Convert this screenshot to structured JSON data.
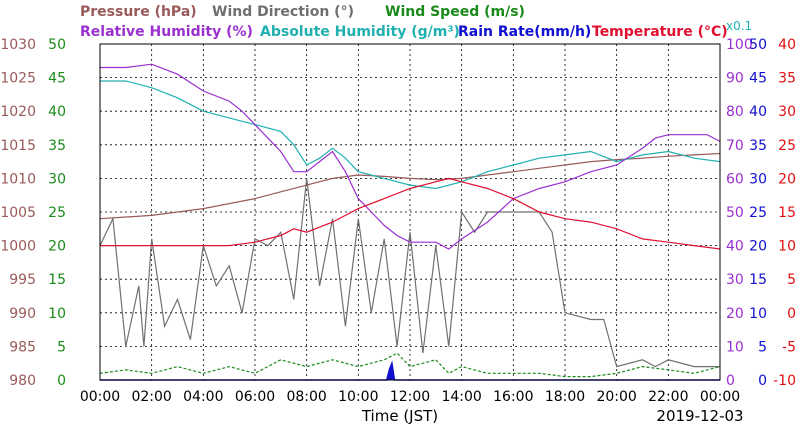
{
  "chart_data": {
    "type": "line",
    "xlabel": "Time (JST)",
    "date": "2019-12-03",
    "x_ticks": [
      "00:00",
      "02:00",
      "04:00",
      "06:00",
      "08:00",
      "10:00",
      "12:00",
      "14:00",
      "16:00",
      "18:00",
      "20:00",
      "22:00",
      "00:00"
    ],
    "grid": true,
    "legend_placement": "top",
    "legend": {
      "pressure": "Pressure (hPa)",
      "wind_direction": "Wind Direction (°)",
      "wind_speed": "Wind Speed (m/s)",
      "relative_humidity": "Relative Humidity (%)",
      "absolute_humidity": "Absolute Humidity (g/m³)",
      "rain_rate": "Rain Rate(mm/h)",
      "temperature": "Temperature (°C)",
      "abs_hum_scale": "x0.1"
    },
    "axes": {
      "pressure": {
        "min": 980,
        "max": 1030,
        "ticks": [
          "1030",
          "1025",
          "1020",
          "1015",
          "1010",
          "1005",
          "1000",
          "995",
          "990",
          "985",
          "980"
        ],
        "color": "#9a5a5a"
      },
      "wind": {
        "min": 0,
        "max": 50,
        "ticks": [
          "50",
          "45",
          "40",
          "35",
          "30",
          "25",
          "20",
          "15",
          "10",
          "5",
          "0"
        ],
        "color": "#1a8a1a"
      },
      "humidity": {
        "min": 0,
        "max": 100,
        "ticks": [
          "100",
          "90",
          "80",
          "70",
          "60",
          "50",
          "40",
          "30",
          "20",
          "10",
          "0"
        ],
        "color": "#9a30d0"
      },
      "rain": {
        "min": 0,
        "max": 50,
        "ticks": [
          "50",
          "45",
          "40",
          "35",
          "30",
          "25",
          "20",
          "15",
          "10",
          "5",
          "0"
        ],
        "color": "#1010d0"
      },
      "temperature": {
        "min": -10,
        "max": 40,
        "ticks": [
          "40",
          "35",
          "30",
          "25",
          "20",
          "15",
          "10",
          "5",
          "0",
          "-5",
          "-10"
        ],
        "color": "#e01010"
      }
    },
    "colors": {
      "pressure": "#9a5a5a",
      "wind_direction": "#707070",
      "wind_speed": "#1a8a1a",
      "relative_humidity": "#9a30d0",
      "absolute_humidity": "#20b0b0",
      "rain_rate": "#1010d0",
      "temperature": "#e01030"
    },
    "series": [
      {
        "key": "temperature",
        "axis": "temperature",
        "x": [
          0,
          1,
          2,
          3,
          4,
          5,
          6,
          7,
          7.5,
          8,
          9,
          10,
          11,
          12,
          13,
          13.5,
          14,
          15,
          16,
          17,
          18,
          19,
          20,
          21,
          22,
          23,
          24
        ],
        "y": [
          10,
          10,
          10,
          10,
          10,
          10,
          10.5,
          11.5,
          12.5,
          12,
          13.5,
          15.5,
          17,
          18.5,
          19.5,
          20,
          19.5,
          18.5,
          17,
          15,
          14,
          13.5,
          12.5,
          11,
          10.5,
          10,
          9.5
        ]
      },
      {
        "key": "pressure",
        "axis": "pressure",
        "x": [
          0,
          2,
          4,
          6,
          8,
          9,
          10,
          11,
          12,
          13,
          14,
          15,
          16,
          17,
          18,
          19,
          20,
          21,
          22,
          23,
          24
        ],
        "y": [
          1004,
          1004.5,
          1005.5,
          1007,
          1009,
          1010,
          1010.5,
          1010.3,
          1010,
          1009.8,
          1010,
          1010.5,
          1011,
          1011.5,
          1012,
          1012.5,
          1012.8,
          1013,
          1013.3,
          1013.5,
          1013.7
        ]
      },
      {
        "key": "relative_humidity",
        "axis": "humidity",
        "x": [
          0,
          1,
          2,
          3,
          4,
          5,
          5.5,
          6,
          6.5,
          7,
          7.5,
          8,
          8.5,
          9,
          9.5,
          10,
          10.5,
          11,
          11.5,
          12,
          13,
          13.5,
          14,
          15,
          16,
          17,
          18,
          19,
          20,
          21,
          21.5,
          22,
          23,
          23.5,
          24
        ],
        "y": [
          93,
          93,
          94,
          91,
          86,
          83,
          80,
          76,
          72,
          68,
          62,
          62,
          65,
          68,
          62,
          54,
          50,
          46,
          43,
          41,
          41,
          39,
          42,
          47,
          54,
          57,
          59,
          62,
          64,
          69,
          72,
          73,
          73,
          73,
          71
        ]
      },
      {
        "key": "absolute_humidity",
        "axis": "humidity",
        "x": [
          0,
          1,
          2,
          3,
          4,
          5,
          6,
          7,
          7.5,
          8,
          8.5,
          9,
          9.5,
          10,
          11,
          12,
          13,
          14,
          15,
          16,
          17,
          18,
          19,
          20,
          21,
          22,
          23,
          24
        ],
        "y": [
          89,
          89,
          87,
          84,
          80,
          78,
          76,
          74,
          70,
          64,
          66,
          69,
          66,
          62,
          60,
          58,
          57,
          59,
          62,
          64,
          66,
          67,
          68,
          65,
          67,
          68,
          66,
          65
        ]
      },
      {
        "key": "wind_direction",
        "axis": "wind",
        "x": [
          0,
          0.5,
          1,
          1.5,
          1.7,
          2,
          2.5,
          3,
          3.5,
          4,
          4.5,
          5,
          5.5,
          6,
          6.5,
          7,
          7.5,
          8,
          8.5,
          9,
          9.5,
          10,
          10.5,
          11,
          11.5,
          12,
          12.5,
          13,
          13.5,
          14,
          14.5,
          15,
          16,
          17,
          17.5,
          18,
          19,
          19.5,
          20,
          21,
          21.5,
          22,
          23,
          24
        ],
        "y": [
          20,
          24,
          5,
          14,
          5,
          21,
          8,
          12,
          6,
          20,
          14,
          17,
          10,
          21,
          20,
          22,
          12,
          30,
          14,
          24,
          8,
          24,
          10,
          21,
          5,
          22,
          4,
          20,
          5,
          25,
          22,
          25,
          25,
          25,
          22,
          10,
          9,
          9,
          2,
          3,
          2,
          3,
          2,
          2
        ]
      },
      {
        "key": "wind_speed",
        "axis": "wind",
        "x": [
          0,
          1,
          2,
          3,
          4,
          5,
          6,
          7,
          8,
          9,
          10,
          11,
          11.5,
          12,
          13,
          13.5,
          14,
          15,
          16,
          17,
          18,
          19,
          20,
          21,
          22,
          23,
          24
        ],
        "y": [
          1,
          1.5,
          1,
          2,
          1,
          2,
          1,
          3,
          2,
          3,
          2,
          3,
          4,
          2,
          3,
          1,
          2,
          1,
          1,
          1,
          0.5,
          0.5,
          1,
          2,
          1.5,
          1,
          2
        ]
      },
      {
        "key": "rain_rate",
        "axis": "rain",
        "x": [
          0,
          11.1,
          11.2,
          11.3,
          11.4,
          24
        ],
        "y": [
          0,
          0,
          1.5,
          2.5,
          0,
          0
        ]
      }
    ]
  }
}
